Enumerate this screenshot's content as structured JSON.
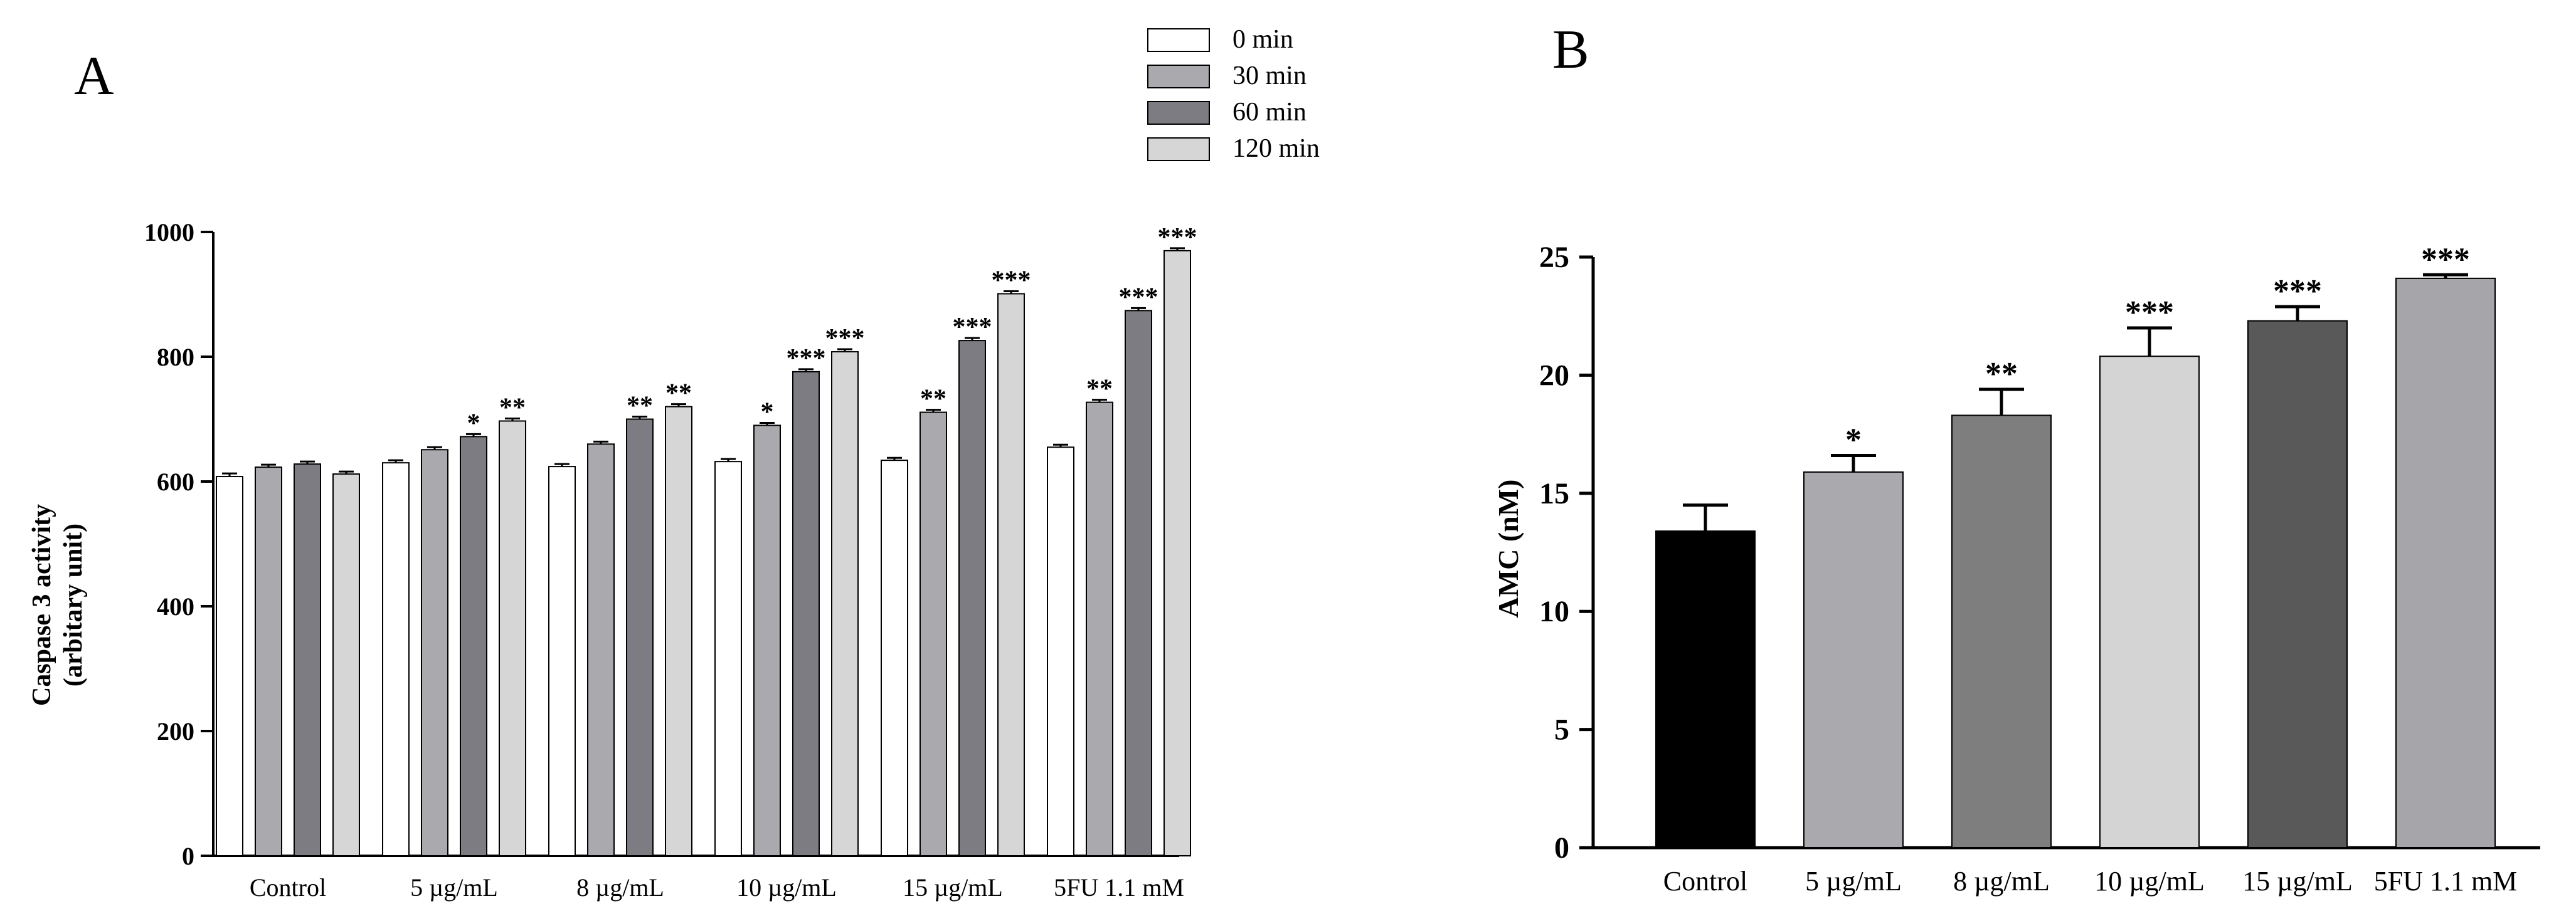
{
  "figure": {
    "panel_a_label": "A",
    "panel_b_label": "B"
  },
  "chart_data": [
    {
      "type": "bar",
      "panel": "A",
      "title": "",
      "xlabel": "",
      "ylabel_line1": "Caspase 3 activity",
      "ylabel_line2": "(arbitary unit)",
      "ylim": [
        0,
        1000
      ],
      "yticks": [
        0,
        200,
        400,
        600,
        800,
        1000
      ],
      "legend_position": "top",
      "categories": [
        "Control",
        "5 µg/mL",
        "8 µg/mL",
        "10 µg/mL",
        "15 µg/mL",
        "5FU  1.1 mM"
      ],
      "series": [
        {
          "name": "0 min",
          "color": "#ffffff",
          "values": [
            608,
            630,
            624,
            632,
            634,
            655
          ],
          "errors": [
            5,
            4,
            4,
            4,
            4,
            4
          ],
          "sig": [
            "",
            "",
            "",
            "",
            "",
            ""
          ]
        },
        {
          "name": "30 min",
          "color": "#a9a9ae",
          "values": [
            623,
            651,
            660,
            690,
            711,
            727
          ],
          "errors": [
            4,
            4,
            4,
            4,
            4,
            4
          ],
          "sig": [
            "",
            "",
            "",
            "*",
            "**",
            "**"
          ]
        },
        {
          "name": "60 min",
          "color": "#7c7c82",
          "values": [
            628,
            672,
            700,
            776,
            826,
            874
          ],
          "errors": [
            4,
            4,
            4,
            4,
            4,
            4
          ],
          "sig": [
            "",
            "*",
            "**",
            "***",
            "***",
            "***"
          ]
        },
        {
          "name": "120 min",
          "color": "#d6d6d6",
          "values": [
            612,
            697,
            720,
            808,
            901,
            970
          ],
          "errors": [
            4,
            4,
            4,
            4,
            4,
            4
          ],
          "sig": [
            "",
            "**",
            "**",
            "***",
            "***",
            "***"
          ]
        }
      ]
    },
    {
      "type": "bar",
      "panel": "B",
      "title": "",
      "xlabel": "",
      "ylabel": "AMC (nM)",
      "ylim": [
        0,
        25
      ],
      "yticks": [
        0,
        5,
        10,
        15,
        20,
        25
      ],
      "categories": [
        "Control",
        "5 µg/mL",
        "8 µg/mL",
        "10 µg/mL",
        "15 µg/mL",
        "5FU  1.1 mM"
      ],
      "values": [
        13.4,
        15.9,
        18.3,
        20.8,
        22.3,
        24.1
      ],
      "errors": [
        1.1,
        0.7,
        1.1,
        1.2,
        0.6,
        0.15
      ],
      "colors": [
        "#000000",
        "#a9a9ae",
        "#7e7e7e",
        "#d4d4d4",
        "#595959",
        "#a6a6aa"
      ],
      "sig": [
        "",
        "*",
        "**",
        "***",
        "***",
        "***"
      ]
    }
  ]
}
